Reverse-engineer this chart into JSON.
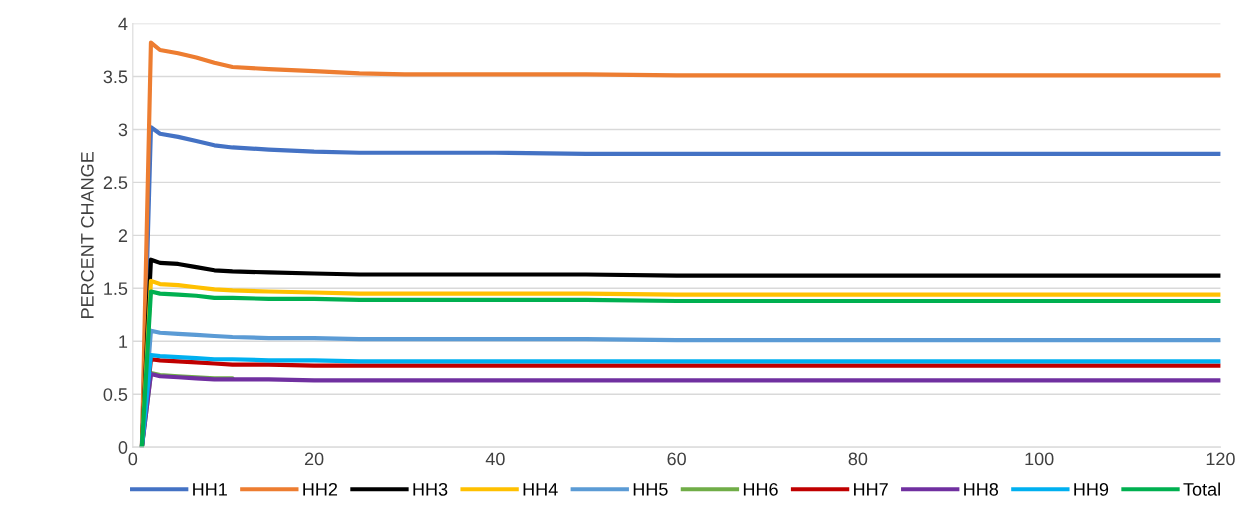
{
  "chart_data": {
    "type": "line",
    "ylabel": "PERCENT CHANGE",
    "x": [
      1,
      2,
      3,
      5,
      7,
      9,
      11,
      15,
      20,
      25,
      30,
      40,
      50,
      60,
      80,
      100,
      120
    ],
    "xlim": [
      0,
      120
    ],
    "xticks": [
      0,
      20,
      40,
      60,
      80,
      100,
      120
    ],
    "ylim": [
      0,
      4
    ],
    "yticks": [
      0,
      0.5,
      1,
      1.5,
      2,
      2.5,
      3,
      3.5,
      4
    ],
    "grid": "y",
    "legend": "bottom",
    "marker": "none",
    "line_style": "solid",
    "series": [
      {
        "name": "HH1",
        "color": "#4472c4",
        "values": [
          0,
          3.02,
          2.96,
          2.93,
          2.89,
          2.85,
          2.83,
          2.81,
          2.79,
          2.78,
          2.78,
          2.78,
          2.77,
          2.77,
          2.77,
          2.77,
          2.77
        ]
      },
      {
        "name": "HH2",
        "color": "#ed7d31",
        "values": [
          0,
          3.82,
          3.75,
          3.72,
          3.68,
          3.63,
          3.59,
          3.57,
          3.55,
          3.53,
          3.52,
          3.52,
          3.52,
          3.51,
          3.51,
          3.51,
          3.51
        ]
      },
      {
        "name": "HH3",
        "color": "#000000",
        "values": [
          0,
          1.77,
          1.74,
          1.73,
          1.7,
          1.67,
          1.66,
          1.65,
          1.64,
          1.63,
          1.63,
          1.63,
          1.63,
          1.62,
          1.62,
          1.62,
          1.62
        ]
      },
      {
        "name": "HH4",
        "color": "#ffc000",
        "values": [
          0,
          1.57,
          1.54,
          1.53,
          1.51,
          1.49,
          1.48,
          1.47,
          1.46,
          1.45,
          1.45,
          1.45,
          1.45,
          1.44,
          1.44,
          1.44,
          1.44
        ]
      },
      {
        "name": "HH5",
        "color": "#5b9bd5",
        "values": [
          0,
          1.1,
          1.08,
          1.07,
          1.06,
          1.05,
          1.04,
          1.03,
          1.03,
          1.02,
          1.02,
          1.02,
          1.02,
          1.01,
          1.01,
          1.01,
          1.01
        ]
      },
      {
        "name": "HH6",
        "color": "#70ad47",
        "values": [
          0,
          0.7,
          0.68,
          0.67,
          0.66,
          0.65,
          0.65,
          null,
          null,
          null,
          null,
          null,
          null,
          null,
          null,
          null,
          null
        ]
      },
      {
        "name": "HH7",
        "color": "#c00000",
        "values": [
          0,
          0.83,
          0.82,
          0.81,
          0.8,
          0.79,
          0.78,
          0.78,
          0.77,
          0.77,
          0.77,
          0.77,
          0.77,
          0.77,
          0.77,
          0.77,
          0.77
        ]
      },
      {
        "name": "HH8",
        "color": "#7030a0",
        "values": [
          0,
          0.69,
          0.67,
          0.66,
          0.65,
          0.64,
          0.64,
          0.64,
          0.63,
          0.63,
          0.63,
          0.63,
          0.63,
          0.63,
          0.63,
          0.63,
          0.63
        ]
      },
      {
        "name": "HH9",
        "color": "#00b0f0",
        "values": [
          0,
          0.87,
          0.86,
          0.85,
          0.84,
          0.83,
          0.83,
          0.82,
          0.82,
          0.81,
          0.81,
          0.81,
          0.81,
          0.81,
          0.81,
          0.81,
          0.81
        ]
      },
      {
        "name": "Total",
        "color": "#00b050",
        "values": [
          0,
          1.47,
          1.45,
          1.44,
          1.43,
          1.41,
          1.41,
          1.4,
          1.4,
          1.39,
          1.39,
          1.39,
          1.39,
          1.38,
          1.38,
          1.38,
          1.38
        ]
      }
    ]
  }
}
